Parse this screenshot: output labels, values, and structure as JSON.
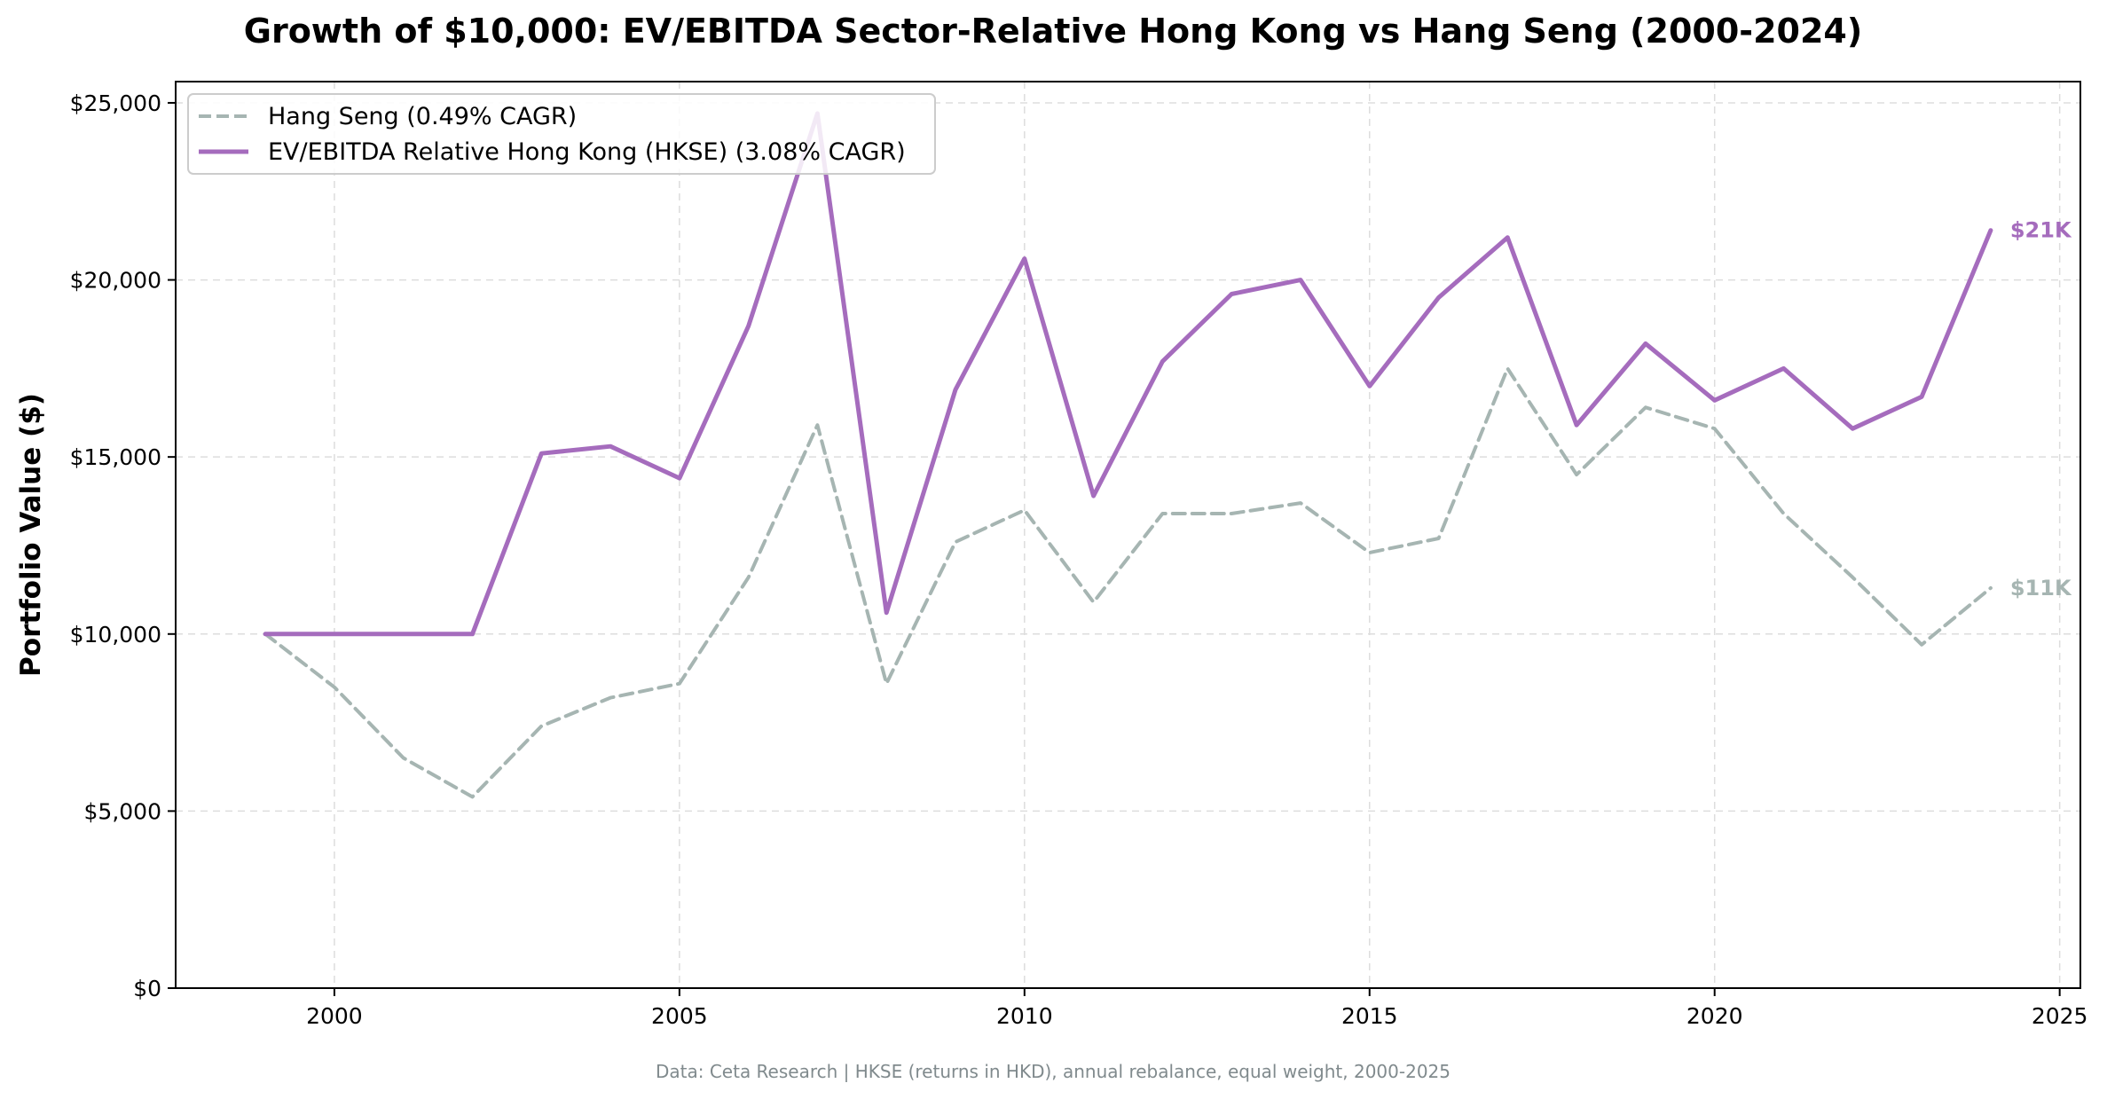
{
  "chart_data": {
    "type": "line",
    "title": "Growth of $10,000: EV/EBITDA Sector-Relative Hong Kong vs Hang Seng (2000-2024)",
    "xlabel": "",
    "ylabel": "Portfolio Value ($)",
    "xlim": [
      1997.7,
      2025.3
    ],
    "ylim": [
      0,
      25600
    ],
    "x_ticks": [
      2000,
      2005,
      2010,
      2015,
      2020,
      2025
    ],
    "x_tick_labels": [
      "2000",
      "2005",
      "2010",
      "2015",
      "2020",
      "2025"
    ],
    "y_ticks": [
      0,
      5000,
      10000,
      15000,
      20000,
      25000
    ],
    "y_tick_labels": [
      "$0",
      "$5,000",
      "$10,000",
      "$15,000",
      "$20,000",
      "$25,000"
    ],
    "grid": true,
    "legend_position": "top-left",
    "x": [
      1999,
      2000,
      2001,
      2002,
      2003,
      2004,
      2005,
      2006,
      2007,
      2008,
      2009,
      2010,
      2011,
      2012,
      2013,
      2014,
      2015,
      2016,
      2017,
      2018,
      2019,
      2020,
      2021,
      2022,
      2023,
      2024
    ],
    "series": [
      {
        "name": "Hang Seng (0.49% CAGR)",
        "style": "dashed",
        "color": "#a6b5b2",
        "values": [
          10000,
          8500,
          6500,
          5400,
          7400,
          8200,
          8600,
          11600,
          15900,
          8600,
          12600,
          13500,
          10900,
          13400,
          13400,
          13700,
          12300,
          12700,
          17500,
          14500,
          16400,
          15800,
          13400,
          11600,
          9700,
          11300
        ],
        "end_label": "$11K"
      },
      {
        "name": "EV/EBITDA Relative Hong Kong (HKSE) (3.08% CAGR)",
        "style": "solid",
        "color": "#a56cbd",
        "values": [
          10000,
          10000,
          10000,
          10000,
          15100,
          15300,
          14400,
          18700,
          24700,
          10600,
          16900,
          20600,
          13900,
          17700,
          19600,
          20000,
          17000,
          19500,
          21200,
          15900,
          18200,
          16600,
          17500,
          15800,
          16700,
          21400
        ],
        "end_label": "$21K"
      }
    ],
    "source_note": "Data: Ceta Research | HKSE (returns in HKD), annual rebalance, equal weight, 2000-2025"
  }
}
